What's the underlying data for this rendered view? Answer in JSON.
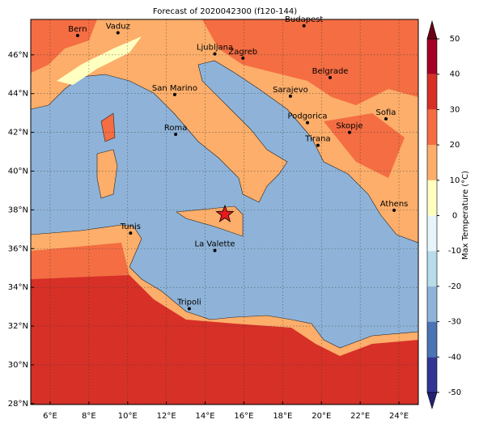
{
  "title": "Forecast of 2020042300 (f120-144)",
  "map": {
    "lonlim": [
      5,
      25
    ],
    "latlim": [
      27.95,
      47.83
    ],
    "lonticks": [
      {
        "value": 6,
        "label": "6°E"
      },
      {
        "value": 8,
        "label": "8°E"
      },
      {
        "value": 10,
        "label": "10°E"
      },
      {
        "value": 12,
        "label": "12°E"
      },
      {
        "value": 14,
        "label": "14°E"
      },
      {
        "value": 16,
        "label": "16°E"
      },
      {
        "value": 18,
        "label": "18°E"
      },
      {
        "value": 20,
        "label": "20°E"
      },
      {
        "value": 22,
        "label": "22°E"
      },
      {
        "value": 24,
        "label": "24°E"
      }
    ],
    "latticks": [
      {
        "value": 28,
        "label": "28°N"
      },
      {
        "value": 30,
        "label": "30°N"
      },
      {
        "value": 32,
        "label": "32°N"
      },
      {
        "value": 34,
        "label": "34°N"
      },
      {
        "value": 36,
        "label": "36°N"
      },
      {
        "value": 38,
        "label": "38°N"
      },
      {
        "value": 40,
        "label": "40°N"
      },
      {
        "value": 42,
        "label": "42°N"
      },
      {
        "value": 44,
        "label": "44°N"
      },
      {
        "value": 46,
        "label": "46°N"
      }
    ],
    "cities": [
      {
        "name": "Bern",
        "lon": 7.42,
        "lat": 47.0
      },
      {
        "name": "Vaduz",
        "lon": 9.5,
        "lat": 47.14
      },
      {
        "name": "Budapest",
        "lon": 19.1,
        "lat": 47.5
      },
      {
        "name": "Ljubljana",
        "lon": 14.5,
        "lat": 46.05
      },
      {
        "name": "Zagreb",
        "lon": 15.95,
        "lat": 45.83
      },
      {
        "name": "Belgrade",
        "lon": 20.45,
        "lat": 44.83
      },
      {
        "name": "San Marino",
        "lon": 12.43,
        "lat": 43.95
      },
      {
        "name": "Sarajevo",
        "lon": 18.4,
        "lat": 43.87
      },
      {
        "name": "Sofia",
        "lon": 23.33,
        "lat": 42.7
      },
      {
        "name": "Podgorica",
        "lon": 19.28,
        "lat": 42.5
      },
      {
        "name": "Skopje",
        "lon": 21.45,
        "lat": 42.0
      },
      {
        "name": "Roma",
        "lon": 12.48,
        "lat": 41.9
      },
      {
        "name": "Tirana",
        "lon": 19.82,
        "lat": 41.33
      },
      {
        "name": "Athens",
        "lon": 23.75,
        "lat": 37.98
      },
      {
        "name": "Tunis",
        "lon": 10.15,
        "lat": 36.8
      },
      {
        "name": "La Valette",
        "lon": 14.5,
        "lat": 35.9
      },
      {
        "name": "Tripoli",
        "lon": 13.18,
        "lat": 32.9
      }
    ],
    "marker": {
      "lon": 15.02,
      "lat": 37.77,
      "color": "#e41a1c"
    }
  },
  "colorbar": {
    "label": "Max Temperature (°C)",
    "lim": [
      -50,
      50
    ],
    "ticks": [
      -50,
      -40,
      -30,
      -20,
      -10,
      0,
      10,
      20,
      30,
      40,
      50
    ],
    "colors": [
      "#232372",
      "#313695",
      "#4a74b4",
      "#8fb3d8",
      "#b7dcea",
      "#e6f5f9",
      "#ffffc0",
      "#fcae6a",
      "#f46d43",
      "#d73027",
      "#a50026",
      "#6b0016"
    ]
  }
}
